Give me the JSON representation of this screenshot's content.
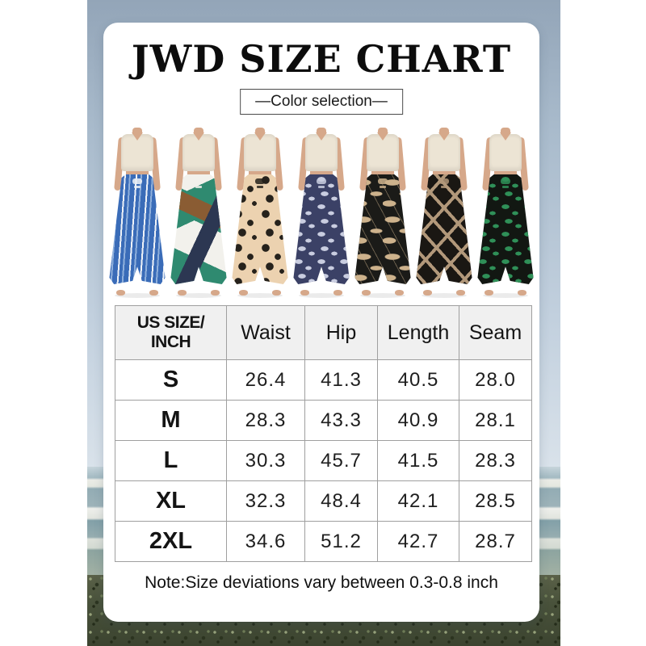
{
  "page": {
    "title": "JWD SIZE CHART",
    "color_selection_label": "—Color selection—",
    "note": "Note:Size deviations vary between 0.3-0.8 inch"
  },
  "palette": {
    "sky_top": "#93a5b8",
    "sky_bottom": "#d9e2ea",
    "sea_blue": "#8fa8b2",
    "foam_white": "#e9ebe5",
    "grass_green": "#4d5540",
    "card_bg": "#ffffff",
    "table_border": "#9f9f9f",
    "table_header_bg": "#f0f0f0",
    "text_color": "#141414",
    "skin": "#d6a88a",
    "hair": "#7d5f45",
    "top_cream": "#ece4d4"
  },
  "color_variants": [
    {
      "name": "blue-white-stripe",
      "pattern": "stripe",
      "base": "#3a6cb8",
      "a1": "#eef2f7",
      "a2": "#8fb0dc"
    },
    {
      "name": "teal-geometric",
      "pattern": "geo",
      "base": "#2f8a70",
      "a1": "#f2f1ec",
      "a2": "#8a5c33",
      "a3": "#2c3752"
    },
    {
      "name": "beige-black-floral",
      "pattern": "floral",
      "base": "#ecd2b0",
      "a1": "#26221c"
    },
    {
      "name": "navy-white-floral",
      "pattern": "leaf",
      "base": "#3b4166",
      "a1": "#c9cde0"
    },
    {
      "name": "black-palm-leaf",
      "pattern": "palm",
      "base": "#1b1b18",
      "a1": "#cdb28c"
    },
    {
      "name": "black-tan-geo-lines",
      "pattern": "lines",
      "base": "#1a1713",
      "a1": "#b2987a"
    },
    {
      "name": "black-green-leaf",
      "pattern": "leaf",
      "base": "#121712",
      "a1": "#2f9058"
    }
  ],
  "size_table": {
    "columns": [
      "US SIZE/ INCH",
      "Waist",
      "Hip",
      "Length",
      "Seam"
    ],
    "rows": [
      {
        "size": "S",
        "values": [
          "26.4",
          "41.3",
          "40.5",
          "28.0"
        ]
      },
      {
        "size": "M",
        "values": [
          "28.3",
          "43.3",
          "40.9",
          "28.1"
        ]
      },
      {
        "size": "L",
        "values": [
          "30.3",
          "45.7",
          "41.5",
          "28.3"
        ]
      },
      {
        "size": "XL",
        "values": [
          "32.3",
          "48.4",
          "42.1",
          "28.5"
        ]
      },
      {
        "size": "2XL",
        "values": [
          "34.6",
          "51.2",
          "42.7",
          "28.7"
        ]
      }
    ]
  }
}
